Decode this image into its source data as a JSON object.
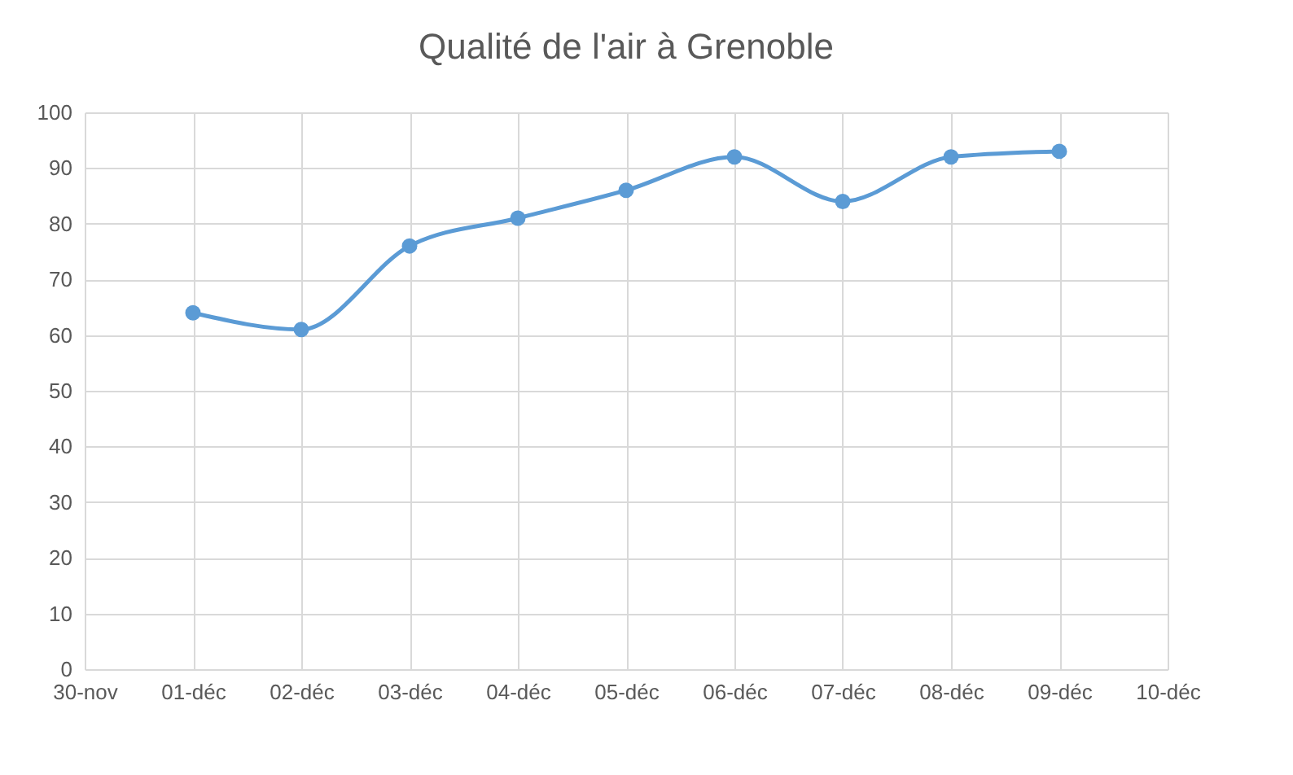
{
  "chart_data": {
    "type": "line",
    "title": "Qualité de l'air à Grenoble",
    "categories": [
      "30-nov",
      "01-déc",
      "02-déc",
      "03-déc",
      "04-déc",
      "05-déc",
      "06-déc",
      "07-déc",
      "08-déc",
      "09-déc",
      "10-déc"
    ],
    "series": [
      {
        "color": "#5b9bd5",
        "values": [
          null,
          64,
          61,
          76,
          81,
          86,
          92,
          84,
          92,
          93,
          null
        ]
      }
    ],
    "ylim": [
      0,
      100
    ],
    "yticks": [
      0,
      10,
      20,
      30,
      40,
      50,
      60,
      70,
      80,
      90,
      100
    ],
    "grid": true,
    "marker": "circle"
  }
}
